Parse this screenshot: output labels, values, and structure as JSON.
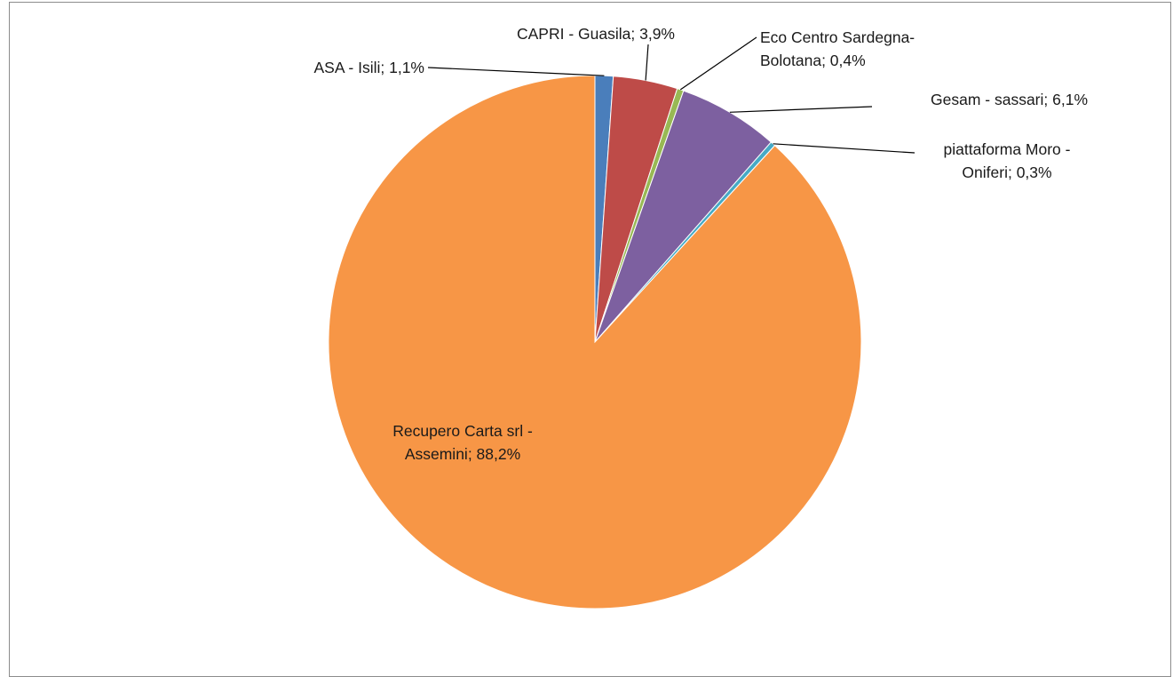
{
  "chart_data": {
    "type": "pie",
    "title": "",
    "slices": [
      {
        "label": "ASA - Isili; 1,1%",
        "value": 1.1,
        "color": "#4A7EBB"
      },
      {
        "label": "CAPRI - Guasila; 3,9%",
        "value": 3.9,
        "color": "#BE4B48"
      },
      {
        "label": "Eco Centro Sardegna- Bolotana; 0,4%",
        "value": 0.4,
        "color": "#98B954"
      },
      {
        "label": "Gesam - sassari; 6,1%",
        "value": 6.1,
        "color": "#7D60A0"
      },
      {
        "label": "piattaforma Moro - Oniferi; 0,3%",
        "value": 0.3,
        "color": "#46AAC5"
      },
      {
        "label": "Recupero Carta srl - Assemini; 88,2%",
        "value": 88.2,
        "color": "#F79646"
      }
    ],
    "legend": "none",
    "data_labels": "outside-with-leader-lines"
  }
}
